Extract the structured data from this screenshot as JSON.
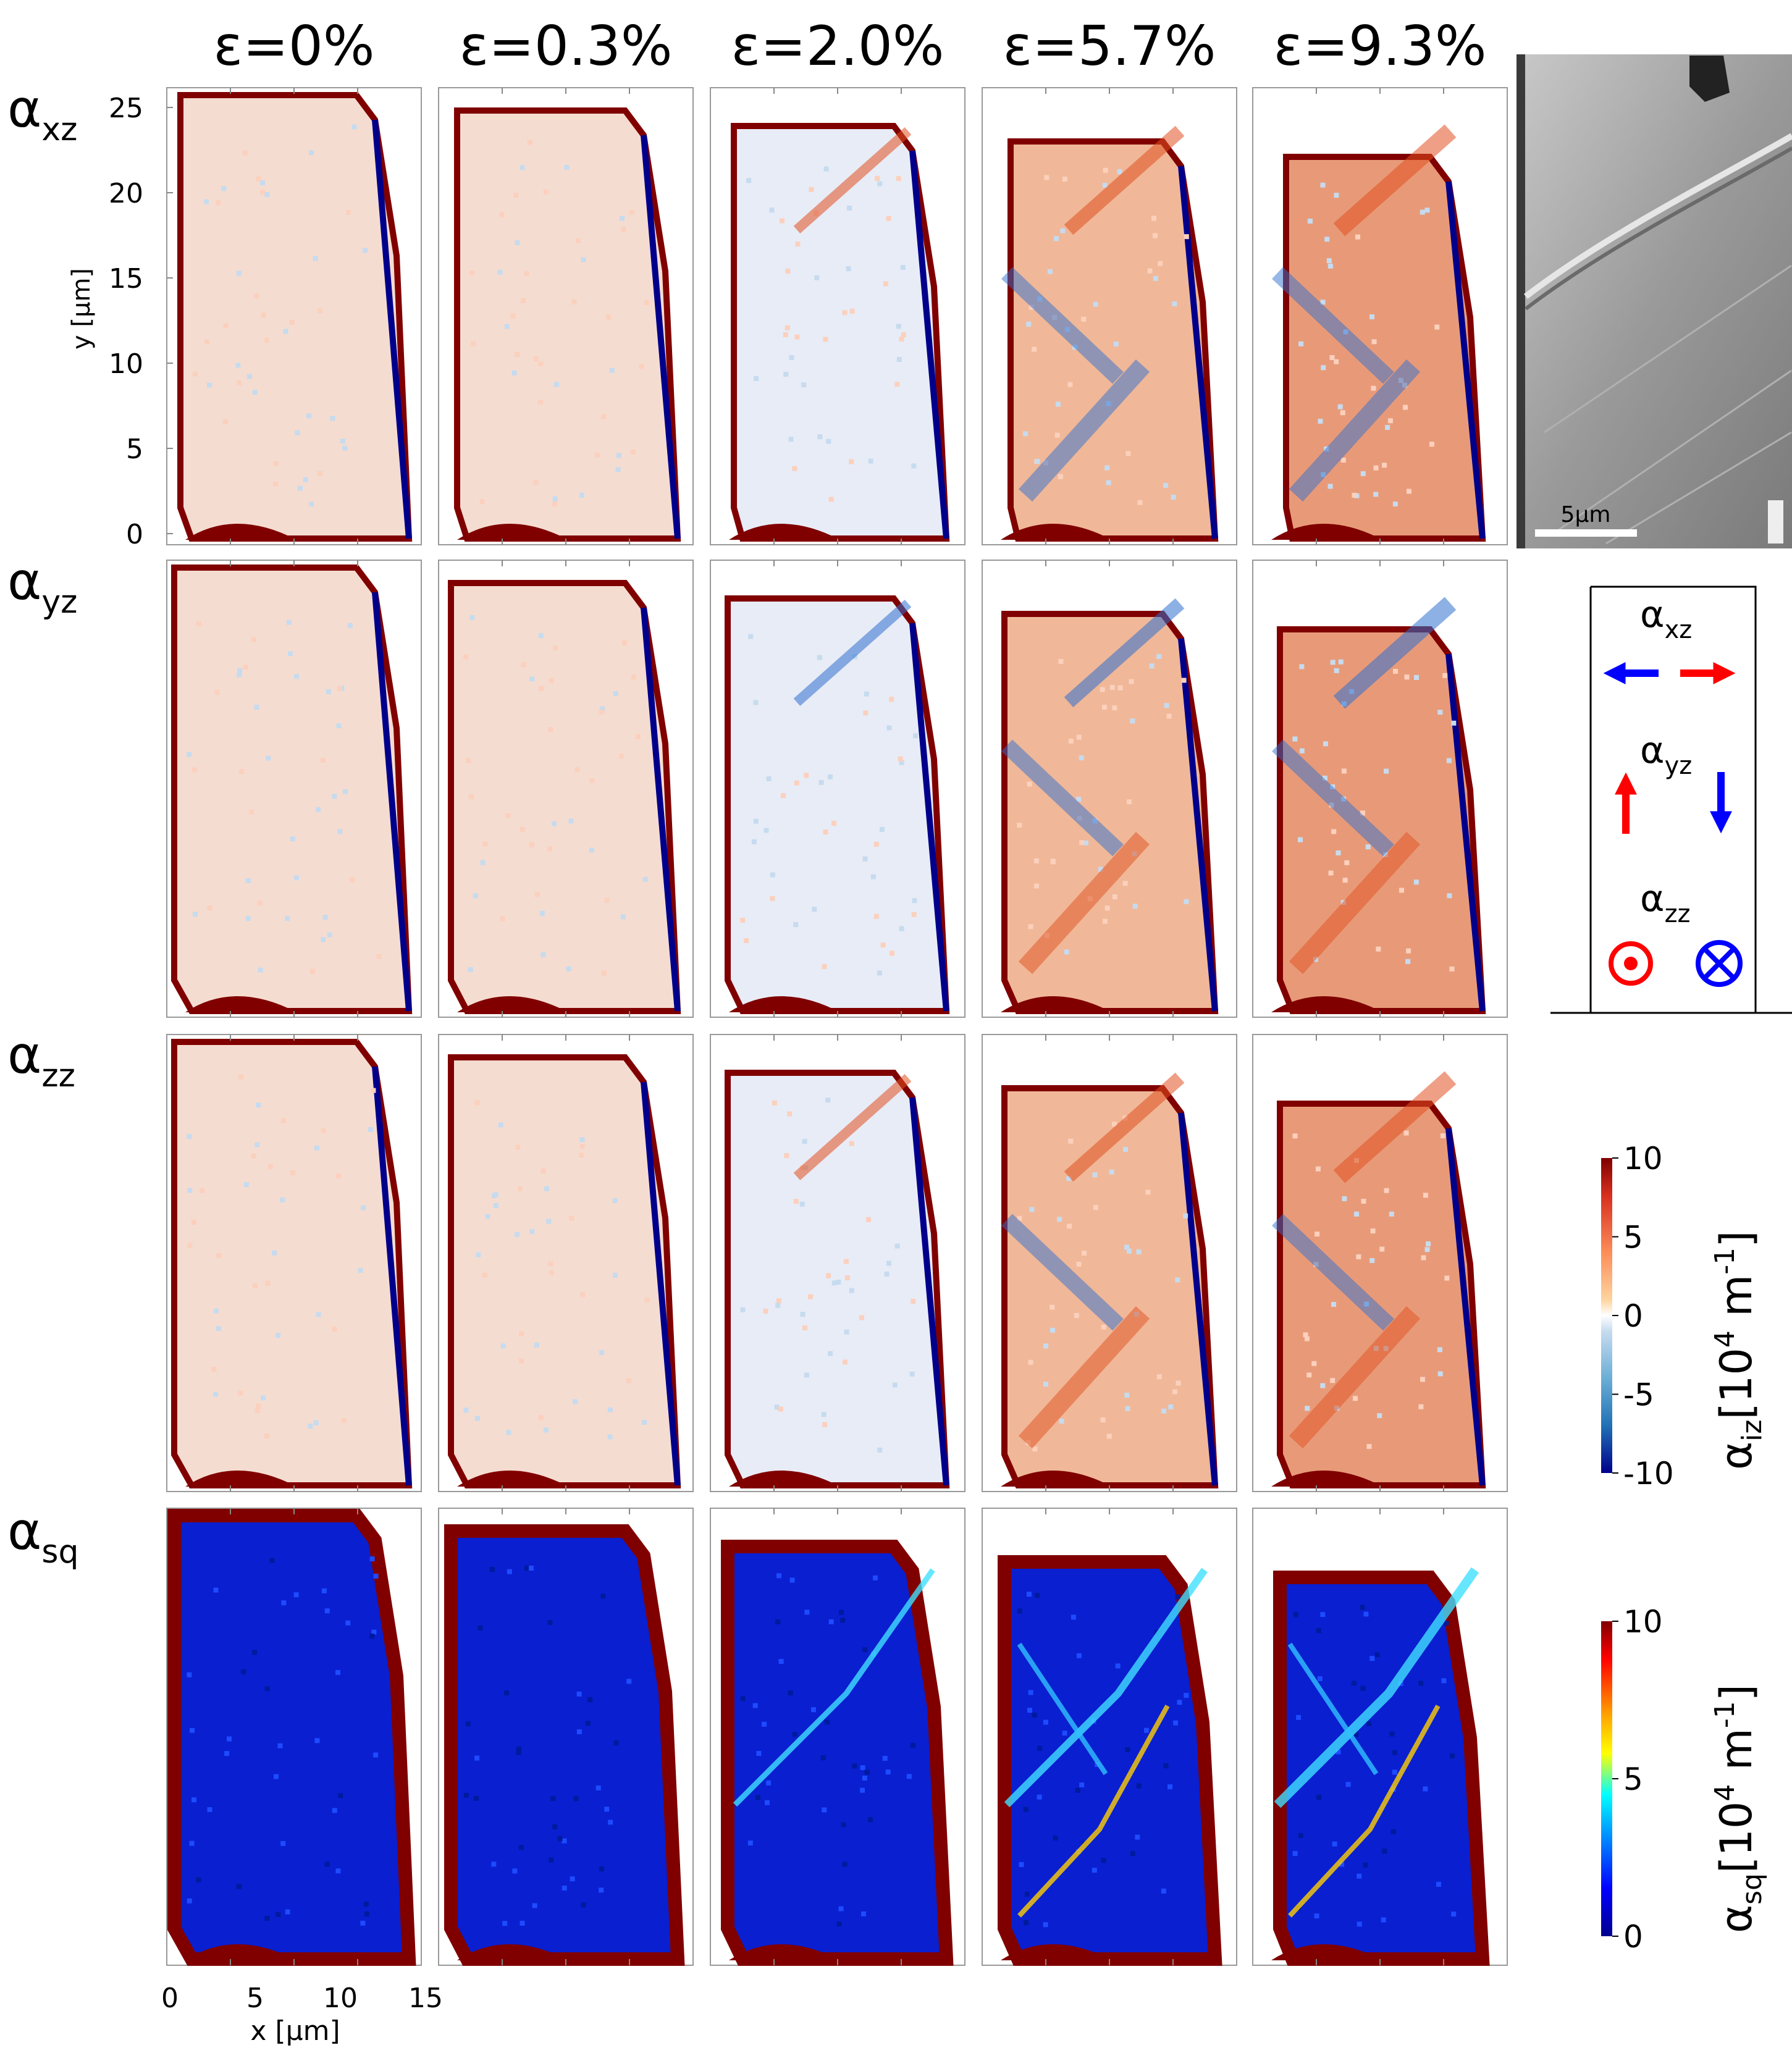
{
  "strain_headers": [
    "ε=0%",
    "ε=0.3%",
    "ε=2.0%",
    "ε=5.7%",
    "ε=9.3%"
  ],
  "row_labels": [
    {
      "main": "α",
      "sub": "xz"
    },
    {
      "main": "α",
      "sub": "yz"
    },
    {
      "main": "α",
      "sub": "zz"
    },
    {
      "main": "α",
      "sub": "sq"
    }
  ],
  "y_axis": {
    "label": "y [μm]",
    "ticks": [
      "0",
      "5",
      "10",
      "15",
      "20",
      "25"
    ]
  },
  "x_axis": {
    "label": "x [μm]",
    "ticks": [
      "0",
      "5",
      "10",
      "15"
    ]
  },
  "sem_image": {
    "scale_bar": "5μm"
  },
  "legend_box": {
    "entries": [
      {
        "main": "α",
        "sub": "xz"
      },
      {
        "main": "α",
        "sub": "yz"
      },
      {
        "main": "α",
        "sub": "zz"
      }
    ],
    "positive_color": "#ff0000",
    "negative_color": "#0000ff",
    "icons": [
      "arrow-left-icon",
      "arrow-right-icon",
      "arrow-up-icon",
      "arrow-down-icon",
      "out-of-plane-icon",
      "into-plane-icon"
    ]
  },
  "colorbar_iz": {
    "ticks": [
      "10",
      "5",
      "0",
      "-5",
      "-10"
    ],
    "label_main": "α",
    "label_sub": "iz",
    "label_unit": "[10",
    "label_exp": "4",
    "label_unit2": " m",
    "label_exp2": "-1",
    "label_close": "]",
    "colors": [
      "#7f0000",
      "#d7301f",
      "#fc8d59",
      "#fdd49e",
      "#ffffff",
      "#c6dbef",
      "#6baed6",
      "#2171b5",
      "#00008b"
    ]
  },
  "colorbar_sq": {
    "ticks": [
      "10",
      "5",
      "0"
    ],
    "label_main": "α",
    "label_sub": "sq",
    "label_unit": "[10",
    "label_exp": "4",
    "label_unit2": " m",
    "label_exp2": "-1",
    "label_close": "]",
    "colors": [
      "#800000",
      "#ff0000",
      "#ffa500",
      "#ffff00",
      "#00ffff",
      "#0080ff",
      "#0000ff",
      "#00008f"
    ]
  }
}
